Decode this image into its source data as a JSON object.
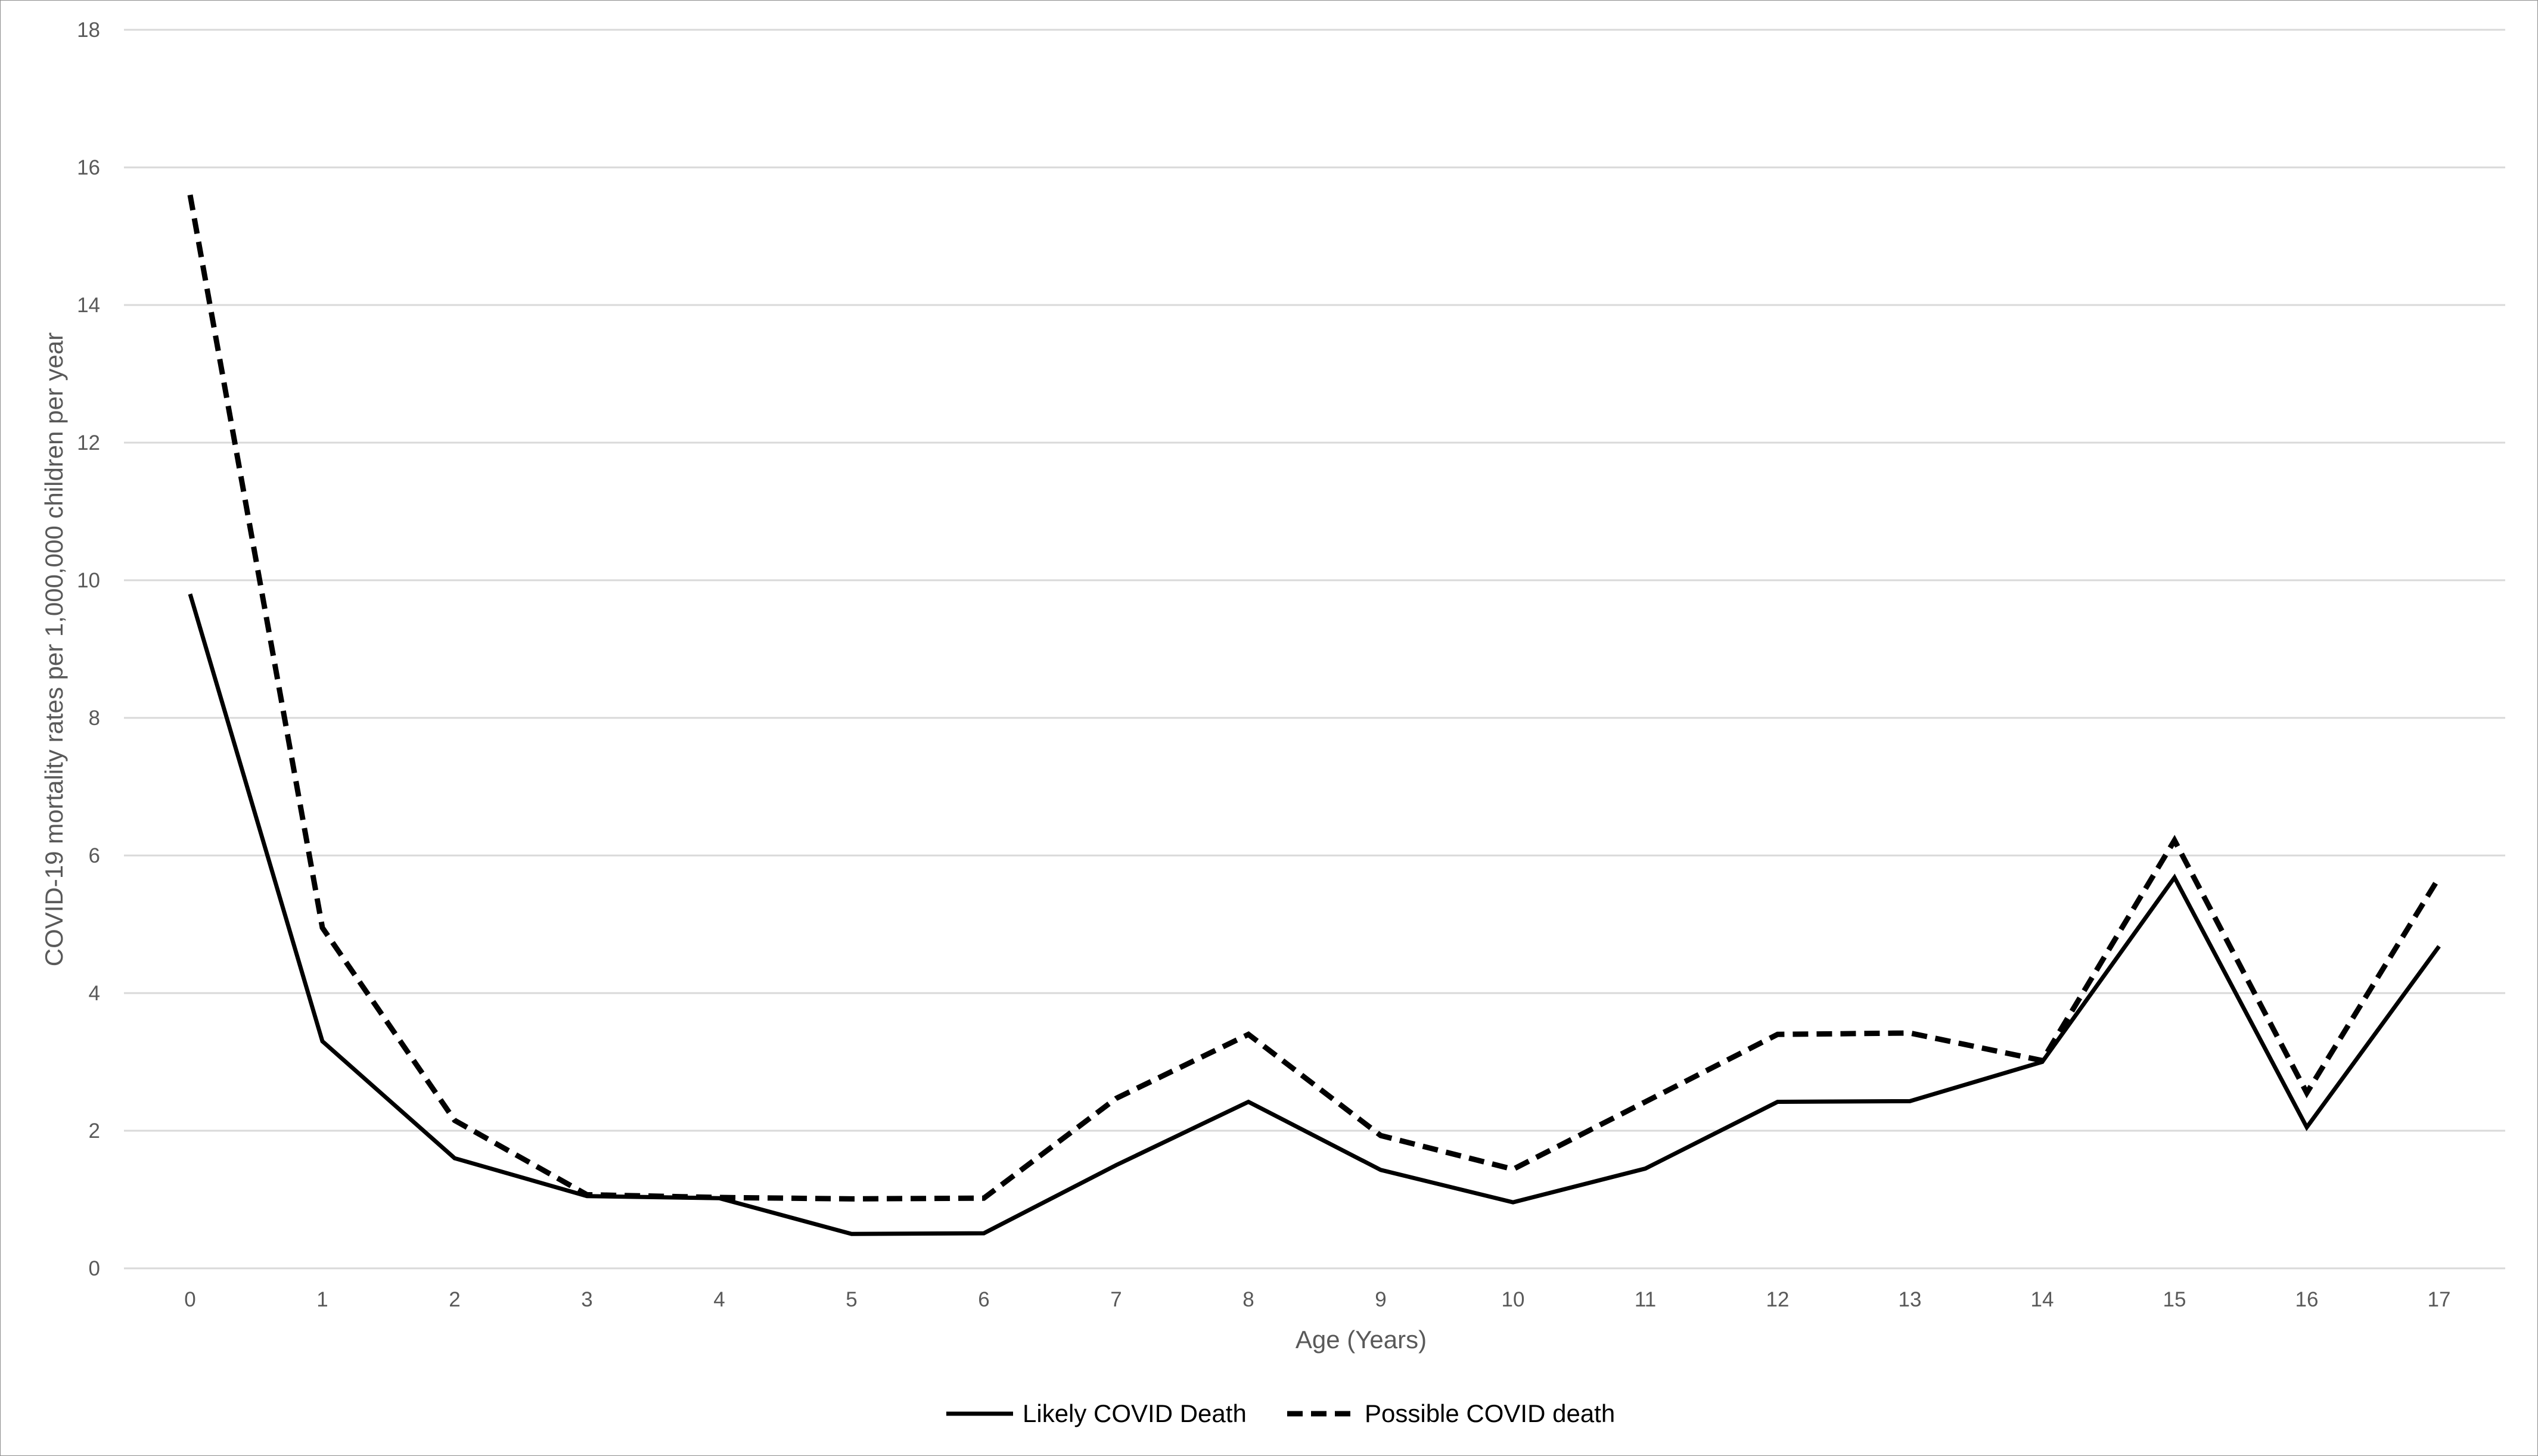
{
  "chart_data": {
    "type": "line",
    "title": "",
    "xlabel": "Age (Years)",
    "ylabel": "COVID-19 mortality rates per 1,000,000 children per year",
    "categories": [
      "0",
      "1",
      "2",
      "3",
      "4",
      "5",
      "6",
      "7",
      "8",
      "9",
      "10",
      "11",
      "12",
      "13",
      "14",
      "15",
      "16",
      "17"
    ],
    "yticks": [
      "0",
      "2",
      "4",
      "6",
      "8",
      "10",
      "12",
      "14",
      "16",
      "18"
    ],
    "ylim": [
      0,
      18
    ],
    "grid": true,
    "legend_position": "bottom",
    "series": [
      {
        "name": "Likely COVID Death",
        "style": "solid",
        "color": "#000000",
        "values": [
          9.8,
          3.3,
          1.6,
          1.05,
          1.02,
          0.5,
          0.51,
          1.5,
          2.42,
          1.43,
          0.96,
          1.45,
          2.42,
          2.43,
          3.0,
          5.68,
          2.05,
          4.68
        ]
      },
      {
        "name": "Possible COVID death",
        "style": "dashed",
        "color": "#000000",
        "values": [
          15.6,
          4.95,
          2.15,
          1.07,
          1.03,
          1.01,
          1.02,
          2.47,
          3.4,
          1.93,
          1.44,
          2.42,
          3.4,
          3.42,
          3.02,
          6.22,
          2.55,
          5.68
        ]
      }
    ],
    "colors": {
      "grid": "#d9d9d9",
      "axis": "#d9d9d9",
      "text": "#595959",
      "border": "#8c8c8c"
    }
  }
}
